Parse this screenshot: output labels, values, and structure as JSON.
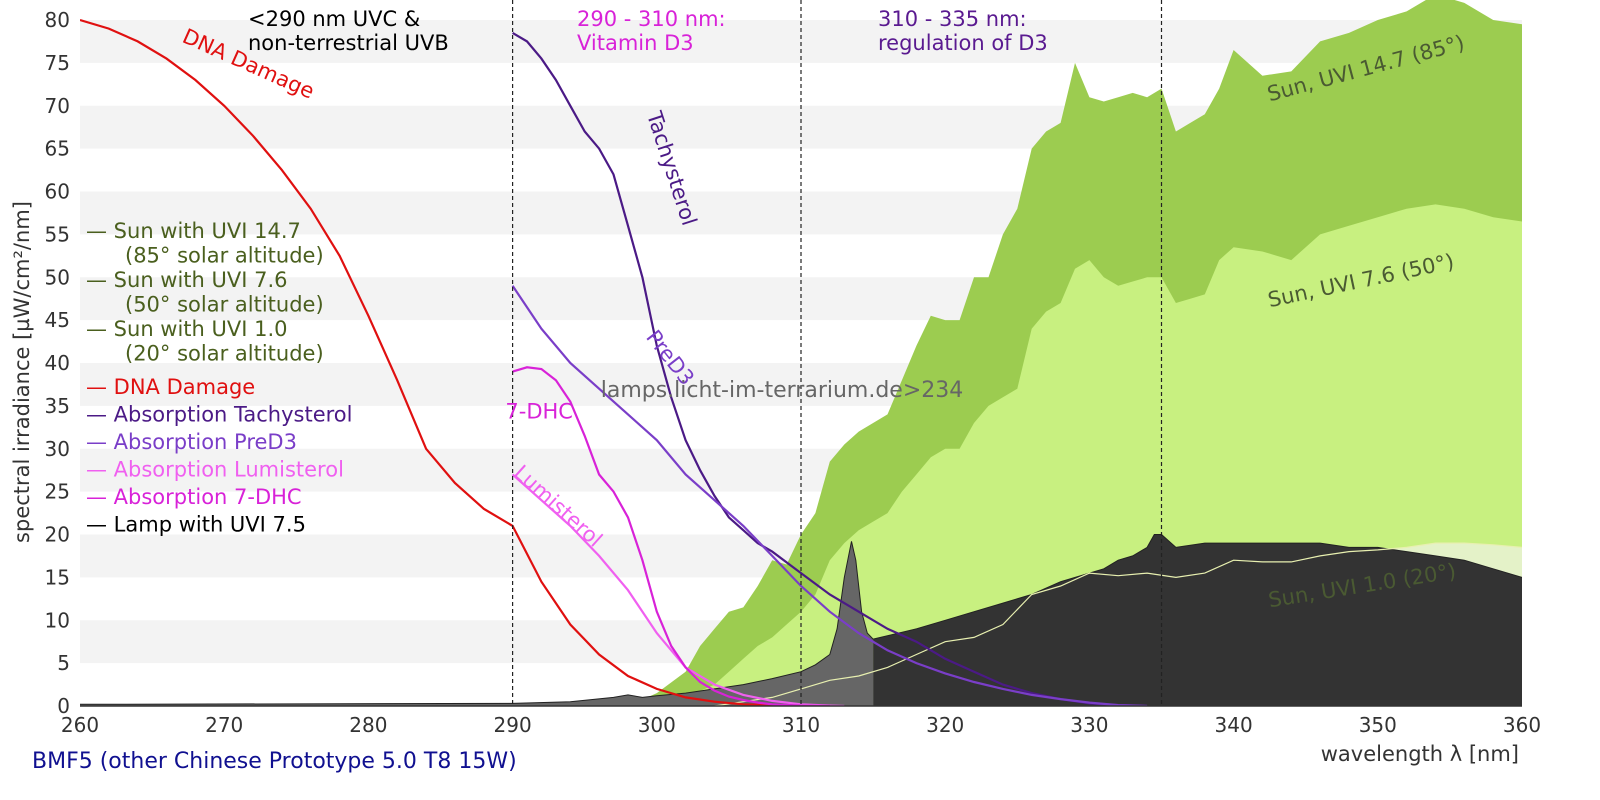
{
  "chart_data": {
    "type": "area",
    "title": "",
    "xlabel": "wavelength λ [nm]",
    "ylabel": "spectral irradiance [µW/cm²/nm]",
    "xlim": [
      260,
      360
    ],
    "ylim": [
      0,
      80
    ],
    "xticks": [
      260,
      270,
      280,
      290,
      300,
      310,
      320,
      330,
      340,
      350,
      360
    ],
    "yticks": [
      0,
      5,
      10,
      15,
      20,
      25,
      30,
      35,
      40,
      45,
      50,
      55,
      60,
      65,
      70,
      75,
      80
    ],
    "grid": "horizontal bands",
    "lamp_name": "BMF5 (other Chinese Prototype 5.0 T8 15W)",
    "watermark": "lamps.licht-im-terrarium.de>234",
    "colors": {
      "sun_uvi_14_7": "#9ccc50",
      "sun_uvi_7_6": "#c8f080",
      "sun_uvi_1_0": "#e4f2c8",
      "lamp": "#333333",
      "lamp_peak_region": "#666666",
      "dna": "#e01010",
      "tachysterol": "#4b1a86",
      "pred3": "#7a3ec8",
      "lumisterol": "#f060f0",
      "dhc7": "#d822d8",
      "legend_sun": "#4a5f1e",
      "sun_label": "#4a5a32",
      "lamp_name": "#101090",
      "watermark": "#666666"
    },
    "regions": [
      {
        "x": 290,
        "text": [
          "<290 nm UVC &",
          "non-terrestrial UVB"
        ],
        "color": "#000000"
      },
      {
        "x": 310,
        "text": [
          "290 - 310 nm:",
          "Vitamin D3"
        ],
        "color": "#d822d8"
      },
      {
        "x": 335,
        "text": [
          "310 - 335 nm:",
          "regulation of D3"
        ],
        "color": "#5a1a90"
      }
    ],
    "legend": [
      {
        "key": "sun147",
        "line1": "— Sun with UVI 14.7",
        "line2": "(85° solar altitude)",
        "color": "#4a5f1e"
      },
      {
        "key": "sun76",
        "line1": "— Sun with UVI 7.6",
        "line2": "(50° solar altitude)",
        "color": "#4a5f1e"
      },
      {
        "key": "sun10",
        "line1": "— Sun with UVI 1.0",
        "line2": "(20° solar altitude)",
        "color": "#4a5f1e"
      },
      {
        "key": "dna",
        "line1": "— DNA Damage",
        "color": "#e01010"
      },
      {
        "key": "tachy",
        "line1": "— Absorption Tachysterol",
        "color": "#4b1a86"
      },
      {
        "key": "pred3",
        "line1": "— Absorption PreD3",
        "color": "#7a3ec8"
      },
      {
        "key": "lumi",
        "line1": "— Absorption Lumisterol",
        "color": "#f060f0"
      },
      {
        "key": "dhc",
        "line1": "— Absorption 7-DHC",
        "color": "#d822d8"
      },
      {
        "key": "lamp",
        "line1": "— Lamp with UVI 7.5",
        "color": "#000000"
      }
    ],
    "curve_labels": [
      {
        "key": "dna",
        "text": "DNA Damage",
        "x": 267,
        "y": 77.5,
        "angle": 24,
        "color": "#e01010"
      },
      {
        "key": "tachy",
        "text": "Tachysterol",
        "x": 299.3,
        "y": 69,
        "angle": 72,
        "color": "#4b1a86"
      },
      {
        "key": "pred3",
        "text": "PreD3",
        "x": 299.2,
        "y": 43,
        "angle": 52,
        "color": "#7a3ec8"
      },
      {
        "key": "dhc",
        "text": "7-DHC",
        "x": 289.5,
        "y": 33.5,
        "angle": 0,
        "color": "#d822d8"
      },
      {
        "key": "lumi",
        "text": "Lumisterol",
        "x": 290,
        "y": 27,
        "angle": 42,
        "color": "#f060f0"
      }
    ],
    "sun_labels": [
      {
        "text": "Sun, UVI 14.7 (85°)",
        "x": 342.5,
        "y": 70.5,
        "angle": -15
      },
      {
        "text": "Sun, UVI 7.6 (50°)",
        "x": 342.5,
        "y": 46.5,
        "angle": -12
      },
      {
        "text": "Sun, UVI 1.0 (20°)",
        "x": 342.5,
        "y": 11.5,
        "angle": -9
      }
    ],
    "series": [
      {
        "name": "Sun with UVI 14.7 (85° solar altitude)",
        "key": "sun147",
        "x": [
          298,
          300,
          302,
          303,
          304,
          305,
          306,
          307,
          308,
          309,
          310,
          311,
          312,
          313,
          314,
          315,
          316,
          317,
          318,
          319,
          320,
          321,
          322,
          323,
          324,
          325,
          326,
          327,
          328,
          329,
          330,
          331,
          332,
          333,
          334,
          335,
          336,
          337,
          338,
          339,
          340,
          342,
          344,
          346,
          348,
          350,
          352,
          354,
          356,
          358,
          360
        ],
        "values": [
          0,
          1.5,
          4,
          7,
          9,
          11,
          11.5,
          14,
          17,
          16.5,
          20,
          22.5,
          28.5,
          30.5,
          32,
          33,
          34,
          38,
          42,
          45.5,
          45,
          45,
          50,
          50,
          55,
          58,
          65,
          67,
          68,
          75,
          71,
          70.5,
          71,
          71.5,
          71,
          72,
          67,
          68,
          69,
          72,
          76.5,
          73.5,
          74,
          77.5,
          78.5,
          80,
          81,
          83,
          82,
          80,
          79.5
        ]
      },
      {
        "name": "Sun with UVI 7.6 (50° solar altitude)",
        "key": "sun76",
        "x": [
          300,
          302,
          304,
          305,
          306,
          307,
          308,
          309,
          310,
          311,
          312,
          313,
          314,
          315,
          316,
          317,
          318,
          319,
          320,
          321,
          322,
          323,
          324,
          325,
          326,
          327,
          328,
          329,
          330,
          331,
          332,
          333,
          334,
          335,
          336,
          337,
          338,
          339,
          340,
          342,
          344,
          346,
          348,
          350,
          352,
          354,
          356,
          358,
          360
        ],
        "values": [
          0,
          1,
          2.5,
          4,
          5.5,
          7,
          8,
          9.5,
          11,
          13,
          17,
          19,
          20.5,
          21.5,
          22.5,
          25,
          27,
          29,
          30,
          30,
          33,
          35,
          36,
          37,
          44,
          46,
          47,
          51,
          52,
          50,
          49,
          49.5,
          50,
          50,
          47,
          47.5,
          48,
          52,
          53.5,
          53,
          52,
          55,
          56,
          57,
          58,
          58.5,
          58,
          57,
          56.5
        ]
      },
      {
        "name": "Sun with UVI 1.0 (20° solar altitude)",
        "key": "sun10",
        "x": [
          304,
          306,
          308,
          310,
          312,
          314,
          316,
          318,
          320,
          322,
          324,
          326,
          328,
          330,
          332,
          334,
          336,
          338,
          340,
          342,
          344,
          346,
          348,
          350,
          352,
          354,
          356,
          358,
          360
        ],
        "values": [
          0,
          0.5,
          1,
          2,
          3,
          3.5,
          4.5,
          6,
          7.5,
          8,
          9.5,
          13,
          14,
          15.5,
          15.2,
          15.5,
          15,
          15.5,
          17,
          16.8,
          16.8,
          17.5,
          18,
          18.2,
          18.5,
          19,
          19,
          18.8,
          18.5
        ]
      },
      {
        "name": "Lamp with UVI 7.5",
        "key": "lamp",
        "x": [
          260,
          290,
          294,
          297,
          298,
          299,
          300,
          302,
          304,
          306,
          308,
          310,
          311,
          312,
          312.5,
          313,
          313.5,
          313.8,
          314.2,
          314.6,
          315,
          316,
          318,
          320,
          322,
          324,
          326,
          328,
          330,
          331,
          332,
          333,
          334,
          334.5,
          335,
          336,
          338,
          340,
          342,
          344,
          346,
          348,
          350,
          352,
          354,
          356,
          358,
          360
        ],
        "values": [
          0.2,
          0.3,
          0.5,
          1,
          1.3,
          1,
          1.2,
          1.5,
          2,
          2.5,
          3.2,
          4,
          4.8,
          6,
          9,
          15,
          19.2,
          17,
          11,
          8.5,
          7.8,
          8.2,
          9,
          10,
          11,
          12,
          13,
          14.5,
          15.5,
          16,
          17,
          17.5,
          18.5,
          20,
          20,
          18.5,
          19,
          19,
          19,
          19,
          19,
          18.5,
          18.5,
          18,
          17.5,
          17,
          16,
          15
        ]
      },
      {
        "name": "DNA Damage",
        "key": "dna",
        "x": [
          260,
          262,
          264,
          266,
          268,
          270,
          272,
          274,
          276,
          278,
          280,
          282,
          284,
          286,
          288,
          290,
          292,
          294,
          296,
          298,
          300,
          302,
          304,
          306,
          308,
          310
        ],
        "values": [
          80,
          79,
          77.5,
          75.5,
          73,
          70,
          66.5,
          62.5,
          58,
          52.5,
          45.5,
          38,
          30,
          26,
          23,
          21,
          14.5,
          9.5,
          6,
          3.5,
          2,
          1,
          0.5,
          0.2,
          0.1,
          0
        ]
      },
      {
        "name": "Absorption Tachysterol",
        "key": "tachy",
        "x": [
          290,
          291,
          292,
          293,
          294,
          295,
          296,
          297,
          298,
          299,
          300,
          301,
          302,
          303,
          304,
          305,
          306,
          307,
          308,
          310,
          312,
          314,
          316,
          318,
          320,
          322,
          324,
          326,
          328,
          330,
          332,
          334
        ],
        "values": [
          78.5,
          77.5,
          75.5,
          73,
          70,
          67,
          65,
          62,
          56,
          50,
          42,
          36,
          31,
          27.5,
          24.5,
          22,
          20.5,
          19,
          18,
          15.5,
          13,
          11,
          9,
          7.5,
          5.5,
          4,
          2.5,
          1.5,
          0.8,
          0.3,
          0.1,
          0
        ]
      },
      {
        "name": "Absorption PreD3",
        "key": "pred3",
        "x": [
          290,
          292,
          294,
          296,
          298,
          300,
          302,
          304,
          306,
          308,
          310,
          312,
          314,
          316,
          318,
          320,
          322,
          324,
          326,
          328,
          330,
          332,
          334
        ],
        "values": [
          49,
          44,
          40,
          37,
          34,
          31,
          27,
          24,
          21,
          17.5,
          14,
          11,
          8.5,
          6.5,
          5,
          3.8,
          2.8,
          2,
          1.3,
          0.8,
          0.4,
          0.1,
          0
        ]
      },
      {
        "name": "Absorption Lumisterol",
        "key": "lumi",
        "x": [
          290,
          292,
          294,
          296,
          298,
          300,
          302,
          304,
          306,
          308,
          310,
          312,
          313
        ],
        "values": [
          27,
          24,
          21,
          17.5,
          13.5,
          8.5,
          4.5,
          2.5,
          1.3,
          0.6,
          0.2,
          0.05,
          0
        ]
      },
      {
        "name": "Absorption 7-DHC",
        "key": "dhc",
        "x": [
          290,
          291,
          292,
          293,
          294,
          295,
          296,
          297,
          298,
          299,
          300,
          301,
          302,
          303,
          304,
          305,
          306,
          307,
          308,
          310,
          312
        ],
        "values": [
          39,
          39.5,
          39.3,
          38,
          35.5,
          31.5,
          27,
          25,
          22,
          17,
          11,
          7,
          4.5,
          2.8,
          1.8,
          1.1,
          0.7,
          0.4,
          0.2,
          0.05,
          0
        ]
      }
    ]
  }
}
